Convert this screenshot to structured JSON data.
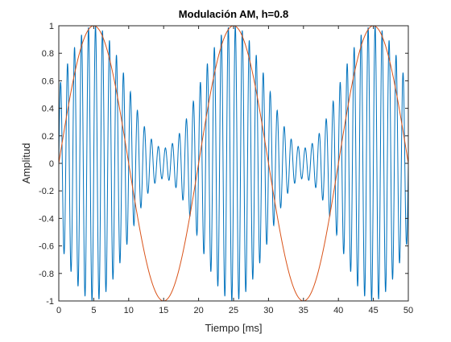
{
  "chart_data": {
    "type": "line",
    "title": "Modulación AM, h=0.8",
    "xlabel": "Tiempo [ms]",
    "ylabel": "Amplitud",
    "xlim": [
      0,
      50
    ],
    "ylim": [
      -1,
      1
    ],
    "xticks": [
      0,
      5,
      10,
      15,
      20,
      25,
      30,
      35,
      40,
      45,
      50
    ],
    "xtick_labels": [
      "0",
      "5",
      "10",
      "15",
      "20",
      "25",
      "30",
      "35",
      "40",
      "45",
      "50"
    ],
    "yticks": [
      -1,
      -0.8,
      -0.6,
      -0.4,
      -0.2,
      0,
      0.2,
      0.4,
      0.6,
      0.8,
      1
    ],
    "ytick_labels": [
      "-1",
      "-0.8",
      "-0.6",
      "-0.4",
      "-0.2",
      "0",
      "0.2",
      "0.4",
      "0.6",
      "0.8",
      "1"
    ],
    "grid": false,
    "legend": "none",
    "series": [
      {
        "role": "modulated signal",
        "color": "#0072BD",
        "formula": "(1 + 0.8*sin(2*pi*t/20)) * sin(2*pi*t) / 1.8",
        "x_range": [
          0,
          50
        ],
        "samples": 2001
      },
      {
        "role": "modulating signal",
        "color": "#D95319",
        "formula": "sin(2*pi*t/20)",
        "x_range": [
          0,
          50
        ],
        "samples": 501
      }
    ]
  }
}
